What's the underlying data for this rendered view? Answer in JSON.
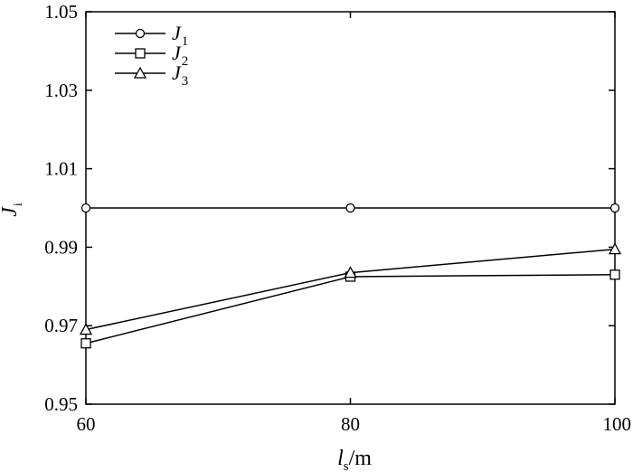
{
  "chart_data": {
    "type": "line",
    "x": [
      60,
      80,
      100
    ],
    "xlim": [
      60,
      100
    ],
    "ylim": [
      0.95,
      1.05
    ],
    "x_ticks": [
      "60",
      "80",
      "100"
    ],
    "y_ticks": [
      "0.95",
      "0.97",
      "0.99",
      "1.01",
      "1.03",
      "1.05"
    ],
    "xlabel": {
      "var": "l",
      "sub": "s",
      "unit": "/m"
    },
    "ylabel": {
      "var": "J",
      "sub": "i"
    },
    "series": [
      {
        "name": "J1",
        "name_var": "J",
        "name_sub": "1",
        "marker": "circle",
        "values": [
          1.0,
          1.0,
          1.0
        ]
      },
      {
        "name": "J2",
        "name_var": "J",
        "name_sub": "2",
        "marker": "square",
        "values": [
          0.9655,
          0.9825,
          0.983
        ]
      },
      {
        "name": "J3",
        "name_var": "J",
        "name_sub": "3",
        "marker": "triangle",
        "values": [
          0.969,
          0.9835,
          0.9895
        ]
      }
    ],
    "legend_position": "top-left",
    "grid": false
  }
}
